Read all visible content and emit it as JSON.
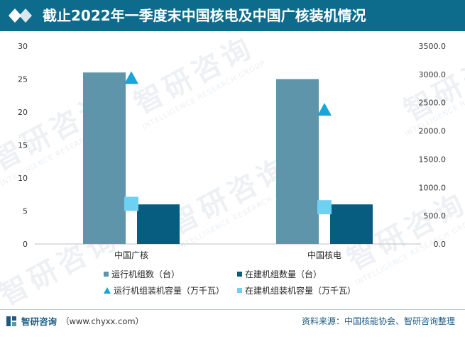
{
  "title": "截止2022年一季度末中国核电及中国广核装机情况",
  "footer": {
    "brand": "智研咨询",
    "url": "（www.chyxx.com）",
    "source": "资料来源：中国核能协会、智研咨询整理"
  },
  "watermark": {
    "text": "智研咨询",
    "subtext": "INTELLIGENCE RESEARCH GROUP"
  },
  "colors": {
    "title_bg": "#0d6c8c",
    "s1": "#5f95ab",
    "s2": "#075d80",
    "s3": "#17a6d6",
    "s4": "#6fd1f2"
  },
  "chart_data": {
    "type": "bar",
    "categories": [
      "中国广核",
      "中国核电"
    ],
    "y_left": {
      "min": 0,
      "max": 30,
      "ticks": [
        "0",
        "5",
        "10",
        "15",
        "20",
        "25",
        "30"
      ]
    },
    "y_right": {
      "min": 0,
      "max": 3500,
      "ticks": [
        "0.0",
        "500.0",
        "1000.0",
        "1500.0",
        "2000.0",
        "2500.0",
        "3000.0",
        "3500.0"
      ]
    },
    "series": [
      {
        "name": "运行机组数（台）",
        "kind": "bar",
        "axis": "left",
        "values": [
          26,
          25
        ]
      },
      {
        "name": "在建机组数量（台）",
        "kind": "bar",
        "axis": "left",
        "values": [
          6,
          6
        ]
      },
      {
        "name": "运行机组装机容量（万千瓦）",
        "kind": "triangle",
        "axis": "right",
        "values": [
          2930,
          2370
        ]
      },
      {
        "name": "在建机组装机容量（万千瓦）",
        "kind": "square",
        "axis": "right",
        "values": [
          710,
          650
        ]
      }
    ]
  }
}
